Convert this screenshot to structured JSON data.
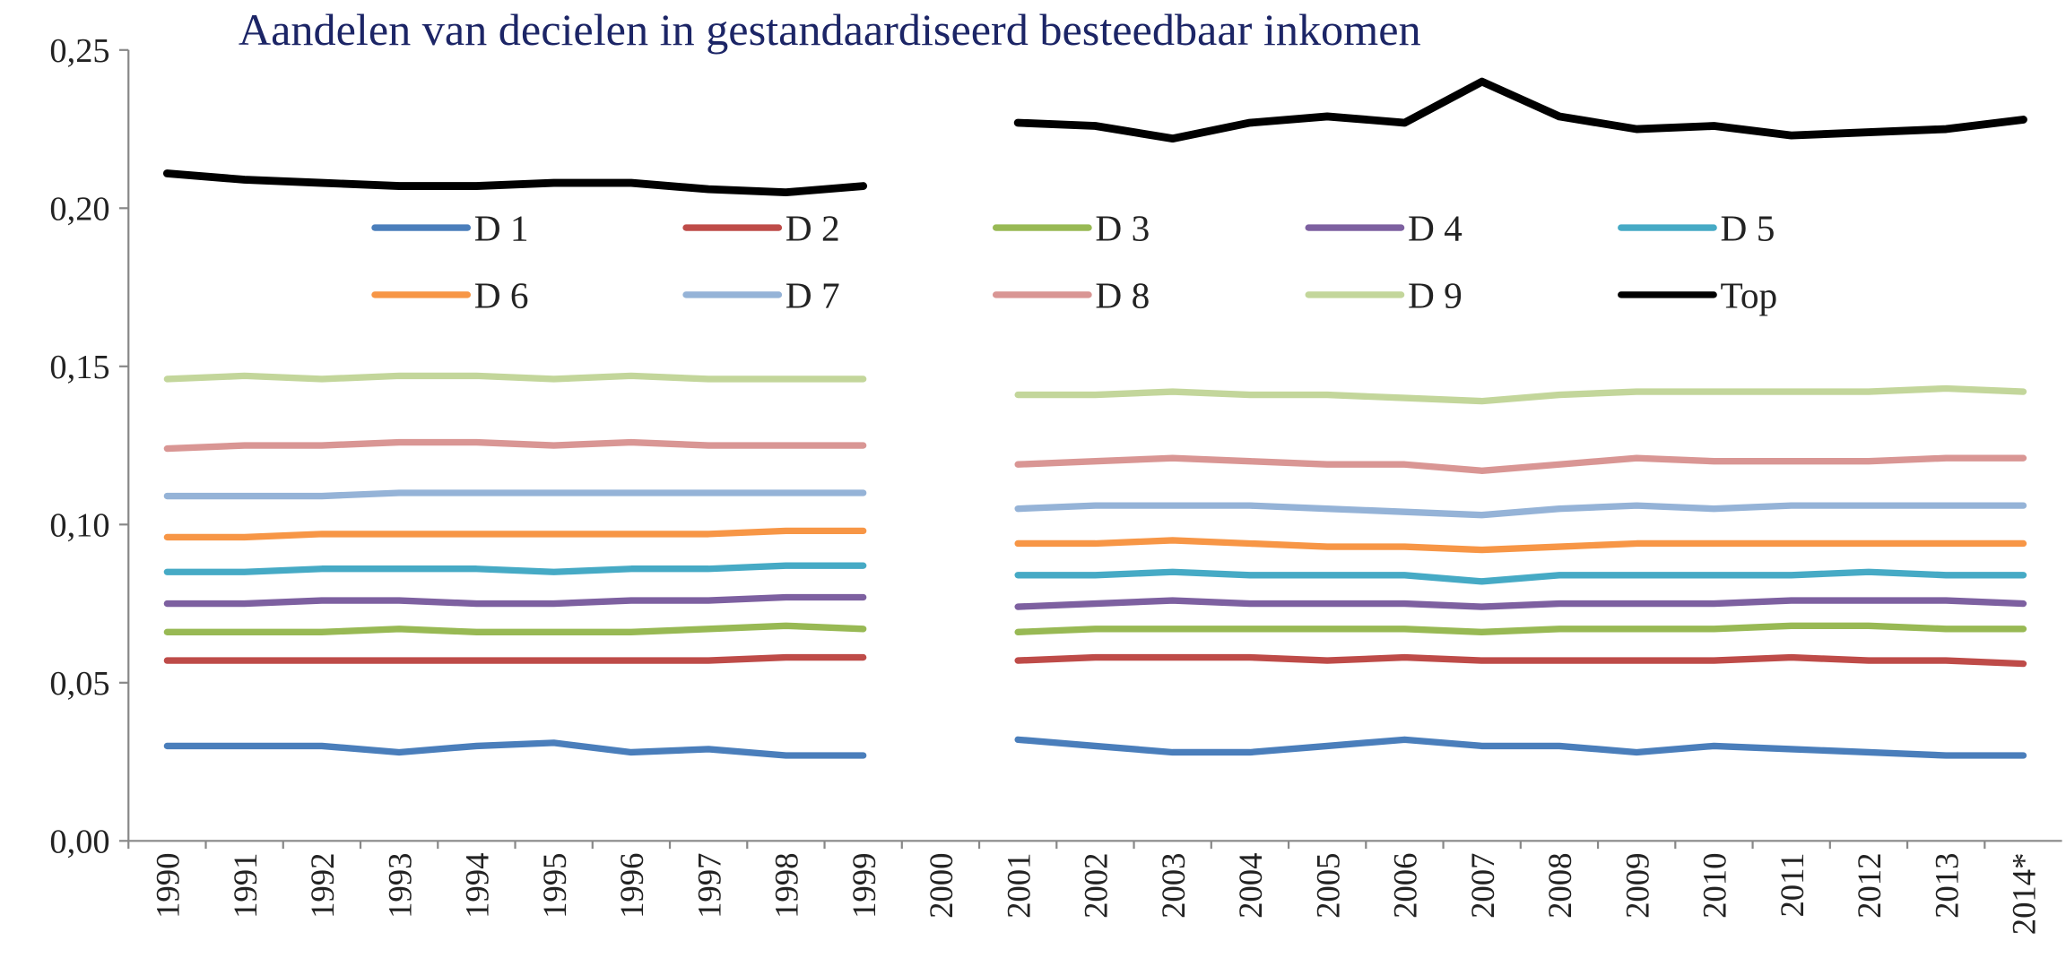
{
  "chart_data": {
    "type": "line",
    "title": "Aandelen van decielen in gestandaardiseerd besteedbaar inkomen",
    "categories": [
      "1990",
      "1991",
      "1992",
      "1993",
      "1994",
      "1995",
      "1996",
      "1997",
      "1998",
      "1999",
      "2000",
      "2001",
      "2002",
      "2003",
      "2004",
      "2005",
      "2006",
      "2007",
      "2008",
      "2009",
      "2010",
      "2011",
      "2012",
      "2013",
      "2014*"
    ],
    "ylim": [
      0,
      0.25
    ],
    "yticks": [
      {
        "value": 0,
        "label": "0,00"
      },
      {
        "value": 0.05,
        "label": "0,05"
      },
      {
        "value": 0.1,
        "label": "0,10"
      },
      {
        "value": 0.15,
        "label": "0,15"
      },
      {
        "value": 0.2,
        "label": "0,20"
      },
      {
        "value": 0.25,
        "label": "0,25"
      }
    ],
    "series": [
      {
        "name": "D 1",
        "color": "#4a7ebb",
        "values": [
          0.03,
          0.03,
          0.03,
          0.028,
          0.03,
          0.031,
          0.028,
          0.029,
          0.027,
          0.027,
          null,
          0.032,
          0.03,
          0.028,
          0.028,
          0.03,
          0.032,
          0.03,
          0.03,
          0.028,
          0.03,
          0.029,
          0.028,
          0.027,
          0.027
        ]
      },
      {
        "name": "D 2",
        "color": "#be4b48",
        "values": [
          0.057,
          0.057,
          0.057,
          0.057,
          0.057,
          0.057,
          0.057,
          0.057,
          0.058,
          0.058,
          null,
          0.057,
          0.058,
          0.058,
          0.058,
          0.057,
          0.058,
          0.057,
          0.057,
          0.057,
          0.057,
          0.058,
          0.057,
          0.057,
          0.056
        ]
      },
      {
        "name": "D 3",
        "color": "#98b954",
        "values": [
          0.066,
          0.066,
          0.066,
          0.067,
          0.066,
          0.066,
          0.066,
          0.067,
          0.068,
          0.067,
          null,
          0.066,
          0.067,
          0.067,
          0.067,
          0.067,
          0.067,
          0.066,
          0.067,
          0.067,
          0.067,
          0.068,
          0.068,
          0.067,
          0.067
        ]
      },
      {
        "name": "D 4",
        "color": "#7d60a0",
        "values": [
          0.075,
          0.075,
          0.076,
          0.076,
          0.075,
          0.075,
          0.076,
          0.076,
          0.077,
          0.077,
          null,
          0.074,
          0.075,
          0.076,
          0.075,
          0.075,
          0.075,
          0.074,
          0.075,
          0.075,
          0.075,
          0.076,
          0.076,
          0.076,
          0.075
        ]
      },
      {
        "name": "D 5",
        "color": "#46aac5",
        "values": [
          0.085,
          0.085,
          0.086,
          0.086,
          0.086,
          0.085,
          0.086,
          0.086,
          0.087,
          0.087,
          null,
          0.084,
          0.084,
          0.085,
          0.084,
          0.084,
          0.084,
          0.082,
          0.084,
          0.084,
          0.084,
          0.084,
          0.085,
          0.084,
          0.084
        ]
      },
      {
        "name": "D 6",
        "color": "#f79646",
        "values": [
          0.096,
          0.096,
          0.097,
          0.097,
          0.097,
          0.097,
          0.097,
          0.097,
          0.098,
          0.098,
          null,
          0.094,
          0.094,
          0.095,
          0.094,
          0.093,
          0.093,
          0.092,
          0.093,
          0.094,
          0.094,
          0.094,
          0.094,
          0.094,
          0.094
        ]
      },
      {
        "name": "D 7",
        "color": "#95b3d7",
        "values": [
          0.109,
          0.109,
          0.109,
          0.11,
          0.11,
          0.11,
          0.11,
          0.11,
          0.11,
          0.11,
          null,
          0.105,
          0.106,
          0.106,
          0.106,
          0.105,
          0.104,
          0.103,
          0.105,
          0.106,
          0.105,
          0.106,
          0.106,
          0.106,
          0.106
        ]
      },
      {
        "name": "D 8",
        "color": "#d99694",
        "values": [
          0.124,
          0.125,
          0.125,
          0.126,
          0.126,
          0.125,
          0.126,
          0.125,
          0.125,
          0.125,
          null,
          0.119,
          0.12,
          0.121,
          0.12,
          0.119,
          0.119,
          0.117,
          0.119,
          0.121,
          0.12,
          0.12,
          0.12,
          0.121,
          0.121
        ]
      },
      {
        "name": "D 9",
        "color": "#c3d69b",
        "values": [
          0.146,
          0.147,
          0.146,
          0.147,
          0.147,
          0.146,
          0.147,
          0.146,
          0.146,
          0.146,
          null,
          0.141,
          0.141,
          0.142,
          0.141,
          0.141,
          0.14,
          0.139,
          0.141,
          0.142,
          0.142,
          0.142,
          0.142,
          0.143,
          0.142
        ]
      },
      {
        "name": "Top",
        "color": "#000000",
        "values": [
          0.211,
          0.209,
          0.208,
          0.207,
          0.207,
          0.208,
          0.208,
          0.206,
          0.205,
          0.207,
          null,
          0.227,
          0.226,
          0.222,
          0.227,
          0.229,
          0.227,
          0.24,
          0.229,
          0.225,
          0.226,
          0.223,
          0.224,
          0.225,
          0.228
        ]
      }
    ]
  }
}
